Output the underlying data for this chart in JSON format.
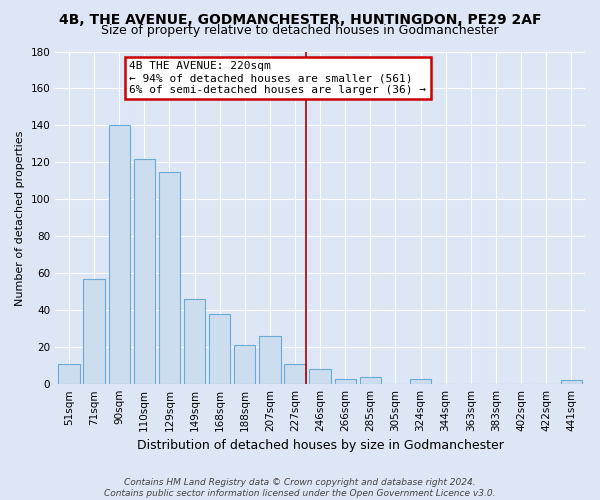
{
  "title": "4B, THE AVENUE, GODMANCHESTER, HUNTINGDON, PE29 2AF",
  "subtitle": "Size of property relative to detached houses in Godmanchester",
  "xlabel": "Distribution of detached houses by size in Godmanchester",
  "ylabel": "Number of detached properties",
  "bar_labels": [
    "51sqm",
    "71sqm",
    "90sqm",
    "110sqm",
    "129sqm",
    "149sqm",
    "168sqm",
    "188sqm",
    "207sqm",
    "227sqm",
    "246sqm",
    "266sqm",
    "285sqm",
    "305sqm",
    "324sqm",
    "344sqm",
    "363sqm",
    "383sqm",
    "402sqm",
    "422sqm",
    "441sqm"
  ],
  "bar_values": [
    11,
    57,
    140,
    122,
    115,
    46,
    38,
    21,
    26,
    11,
    8,
    3,
    4,
    0,
    3,
    0,
    0,
    0,
    0,
    0,
    2
  ],
  "bar_color": "#ccddf0",
  "bar_edge_color": "#6aaad4",
  "vline_x_idx": 9,
  "vline_color": "#aa0000",
  "annotation_title": "4B THE AVENUE: 220sqm",
  "annotation_line1": "← 94% of detached houses are smaller (561)",
  "annotation_line2": "6% of semi-detached houses are larger (36) →",
  "annotation_box_facecolor": "#ffffff",
  "annotation_box_edgecolor": "#cc0000",
  "ylim": [
    0,
    180
  ],
  "yticks": [
    0,
    20,
    40,
    60,
    80,
    100,
    120,
    140,
    160,
    180
  ],
  "footer_line1": "Contains HM Land Registry data © Crown copyright and database right 2024.",
  "footer_line2": "Contains public sector information licensed under the Open Government Licence v3.0.",
  "bg_color": "#dce6f5",
  "plot_bg_color": "#dce6f5",
  "grid_color": "#ffffff",
  "title_fontsize": 10,
  "subtitle_fontsize": 9,
  "ylabel_fontsize": 8,
  "xlabel_fontsize": 9,
  "tick_fontsize": 7.5,
  "annotation_fontsize": 8,
  "footer_fontsize": 6.5
}
